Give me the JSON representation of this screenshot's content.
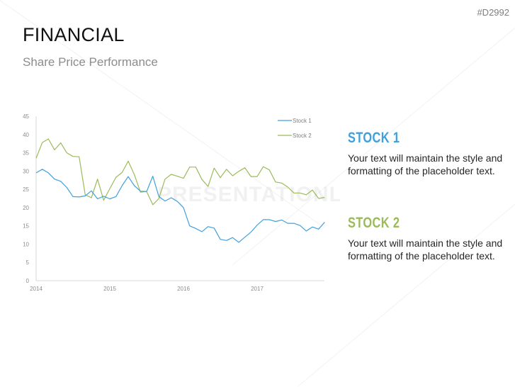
{
  "header": {
    "code": "#D2992",
    "title": "FINANCIAL",
    "subtitle": "Share Price Performance"
  },
  "watermark": "PRESENTATIONLOAD",
  "colors": {
    "stock1": "#41a0dc",
    "stock2": "#9bbb59",
    "axis": "#d9d9d9",
    "tick": "#8c8c8c"
  },
  "panels": [
    {
      "heading": "STOCK 1",
      "body": "Your text will maintain the style and formatting of the placeholder text.",
      "color": "#41a0dc"
    },
    {
      "heading": "STOCK 2",
      "body": "Your text will maintain the style and formatting of the placeholder text.",
      "color": "#9bbb59"
    }
  ],
  "chart_data": {
    "type": "line",
    "title": "",
    "xlabel": "",
    "ylabel": "",
    "ylim": [
      0,
      45
    ],
    "yticks": [
      0,
      5,
      10,
      15,
      20,
      25,
      30,
      35,
      40,
      45
    ],
    "xticks": [
      "2014",
      "2015",
      "2016",
      "2017"
    ],
    "grid": false,
    "legend_position": "top-right",
    "x_note": "monthly points, Jan 2014 to Dec 2017",
    "series": [
      {
        "name": "Stock 1",
        "color": "#41a0dc",
        "values": [
          29.5,
          30.5,
          29.5,
          27.8,
          27.2,
          25.5,
          23.0,
          22.9,
          23.2,
          24.6,
          22.4,
          23.1,
          22.4,
          23.0,
          26.0,
          28.5,
          26.0,
          24.5,
          24.4,
          28.6,
          23.0,
          21.8,
          22.7,
          21.7,
          20.0,
          15.0,
          14.3,
          13.4,
          14.8,
          14.4,
          11.3,
          11.0,
          11.8,
          10.5,
          11.9,
          13.3,
          15.2,
          16.7,
          16.7,
          16.2,
          16.6,
          15.7,
          15.7,
          15.1,
          13.6,
          14.7,
          14.1,
          16.0
        ]
      },
      {
        "name": "Stock 2",
        "color": "#9bbb59",
        "values": [
          33.5,
          37.8,
          38.8,
          35.8,
          37.7,
          35.0,
          34.0,
          33.9,
          23.5,
          22.7,
          27.8,
          22.0,
          25.2,
          28.3,
          29.6,
          32.7,
          29.0,
          24.2,
          24.4,
          20.8,
          22.5,
          27.8,
          29.1,
          28.6,
          28.0,
          31.1,
          31.1,
          27.7,
          25.8,
          30.8,
          28.2,
          30.5,
          28.7,
          29.9,
          30.9,
          28.5,
          28.5,
          31.2,
          30.3,
          27.0,
          26.7,
          25.6,
          24.0,
          24.0,
          23.5,
          24.8,
          22.5,
          22.8
        ]
      }
    ]
  }
}
